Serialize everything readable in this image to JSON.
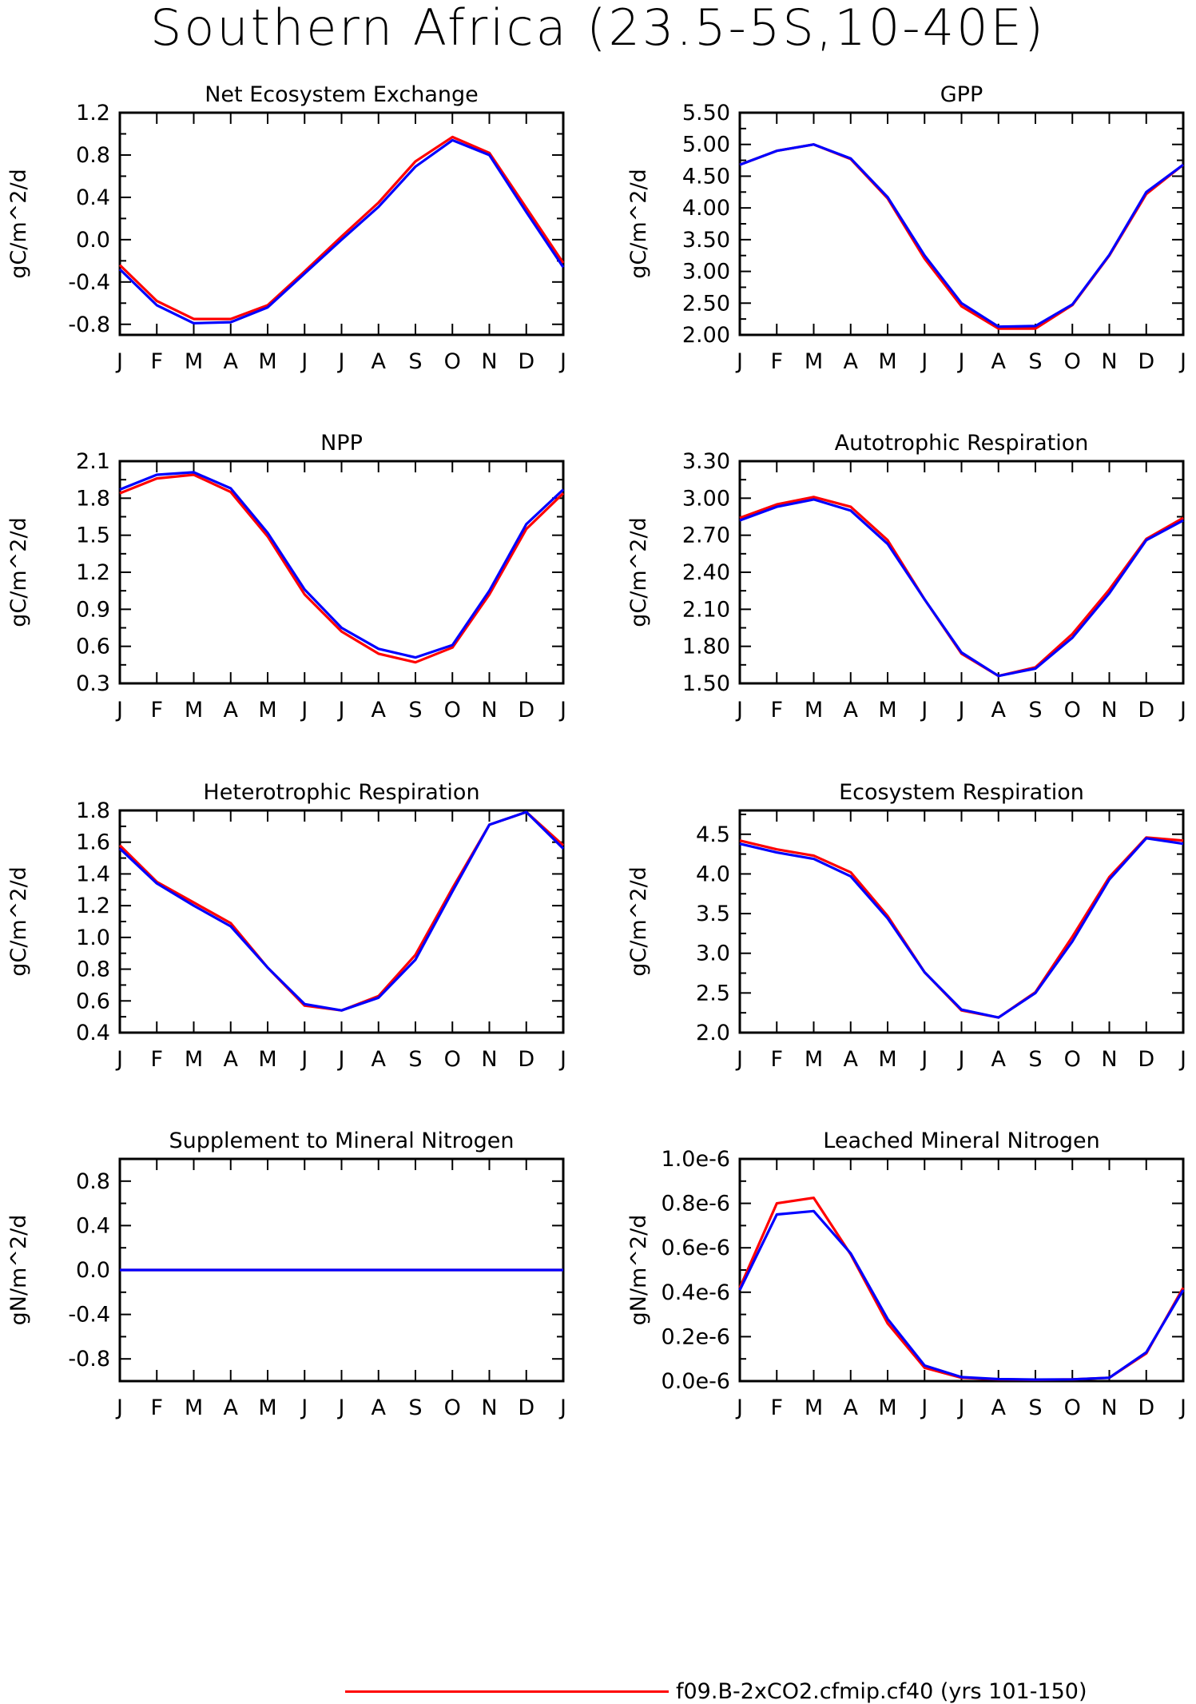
{
  "page": {
    "title": "Southern Africa (23.5-5S,10-40E)",
    "legend": [
      {
        "label": "f09.B-2xCO2.cfmip.cf40 (yrs 101-150)",
        "color": "#ff0000"
      }
    ]
  },
  "chart_data": [
    {
      "type": "line",
      "title": "Net Ecosystem Exchange",
      "ylabel": "gC/m^2/d",
      "ylim": [
        -0.9,
        1.2
      ],
      "yticks": [
        "-0.8",
        "-0.4",
        "0.0",
        "0.4",
        "0.8",
        "1.2"
      ],
      "categories": [
        "J",
        "F",
        "M",
        "A",
        "M",
        "J",
        "J",
        "A",
        "S",
        "O",
        "N",
        "D",
        "J"
      ],
      "grid": false,
      "series": [
        {
          "color": "#ff0000",
          "values": [
            -0.24,
            -0.58,
            -0.75,
            -0.75,
            -0.62,
            -0.3,
            0.03,
            0.35,
            0.74,
            0.97,
            0.82,
            0.3,
            -0.22
          ]
        },
        {
          "color": "#0000ff",
          "values": [
            -0.28,
            -0.62,
            -0.79,
            -0.78,
            -0.64,
            -0.32,
            0.0,
            0.31,
            0.69,
            0.94,
            0.8,
            0.26,
            -0.26
          ]
        }
      ]
    },
    {
      "type": "line",
      "title": "GPP",
      "ylabel": "gC/m^2/d",
      "ylim": [
        2.0,
        5.5
      ],
      "yticks": [
        "2.00",
        "2.50",
        "3.00",
        "3.50",
        "4.00",
        "4.50",
        "5.00",
        "5.50"
      ],
      "categories": [
        "J",
        "F",
        "M",
        "A",
        "M",
        "J",
        "J",
        "A",
        "S",
        "O",
        "N",
        "D",
        "J"
      ],
      "grid": false,
      "series": [
        {
          "color": "#ff0000",
          "values": [
            4.68,
            4.9,
            5.0,
            4.77,
            4.15,
            3.2,
            2.45,
            2.1,
            2.1,
            2.47,
            3.25,
            4.22,
            4.68
          ]
        },
        {
          "color": "#0000ff",
          "values": [
            4.68,
            4.9,
            5.0,
            4.78,
            4.17,
            3.25,
            2.5,
            2.13,
            2.14,
            2.48,
            3.26,
            4.25,
            4.68
          ]
        }
      ]
    },
    {
      "type": "line",
      "title": "NPP",
      "ylabel": "gC/m^2/d",
      "ylim": [
        0.3,
        2.1
      ],
      "yticks": [
        "0.3",
        "0.6",
        "0.9",
        "1.2",
        "1.5",
        "1.8",
        "2.1"
      ],
      "categories": [
        "J",
        "F",
        "M",
        "A",
        "M",
        "J",
        "J",
        "A",
        "S",
        "O",
        "N",
        "D",
        "J"
      ],
      "grid": false,
      "series": [
        {
          "color": "#ff0000",
          "values": [
            1.84,
            1.96,
            1.99,
            1.85,
            1.49,
            1.02,
            0.72,
            0.54,
            0.47,
            0.59,
            1.02,
            1.55,
            1.84
          ]
        },
        {
          "color": "#0000ff",
          "values": [
            1.87,
            1.99,
            2.01,
            1.88,
            1.52,
            1.06,
            0.75,
            0.58,
            0.51,
            0.61,
            1.05,
            1.59,
            1.87
          ]
        }
      ]
    },
    {
      "type": "line",
      "title": "Autotrophic Respiration",
      "ylabel": "gC/m^2/d",
      "ylim": [
        1.5,
        3.3
      ],
      "yticks": [
        "1.50",
        "1.80",
        "2.10",
        "2.40",
        "2.70",
        "3.00",
        "3.30"
      ],
      "categories": [
        "J",
        "F",
        "M",
        "A",
        "M",
        "J",
        "J",
        "A",
        "S",
        "O",
        "N",
        "D",
        "J"
      ],
      "grid": false,
      "series": [
        {
          "color": "#ff0000",
          "values": [
            2.84,
            2.95,
            3.01,
            2.93,
            2.66,
            2.18,
            1.74,
            1.56,
            1.63,
            1.9,
            2.26,
            2.67,
            2.84
          ]
        },
        {
          "color": "#0000ff",
          "values": [
            2.82,
            2.93,
            2.99,
            2.9,
            2.63,
            2.18,
            1.75,
            1.56,
            1.62,
            1.87,
            2.23,
            2.66,
            2.82
          ]
        }
      ]
    },
    {
      "type": "line",
      "title": "Heterotrophic Respiration",
      "ylabel": "gC/m^2/d",
      "ylim": [
        0.4,
        1.8
      ],
      "yticks": [
        "0.4",
        "0.6",
        "0.8",
        "1.0",
        "1.2",
        "1.4",
        "1.6",
        "1.8"
      ],
      "categories": [
        "J",
        "F",
        "M",
        "A",
        "M",
        "J",
        "J",
        "A",
        "S",
        "O",
        "N",
        "D",
        "J"
      ],
      "grid": false,
      "series": [
        {
          "color": "#ff0000",
          "values": [
            1.58,
            1.35,
            1.22,
            1.09,
            0.81,
            0.57,
            0.54,
            0.63,
            0.89,
            1.31,
            1.71,
            1.79,
            1.58
          ]
        },
        {
          "color": "#0000ff",
          "values": [
            1.56,
            1.34,
            1.2,
            1.07,
            0.81,
            0.58,
            0.54,
            0.62,
            0.86,
            1.29,
            1.71,
            1.79,
            1.56
          ]
        }
      ]
    },
    {
      "type": "line",
      "title": "Ecosystem Respiration",
      "ylabel": "gC/m^2/d",
      "ylim": [
        2.0,
        4.8
      ],
      "yticks": [
        "2.0",
        "2.5",
        "3.0",
        "3.5",
        "4.0",
        "4.5"
      ],
      "categories": [
        "J",
        "F",
        "M",
        "A",
        "M",
        "J",
        "J",
        "A",
        "S",
        "O",
        "N",
        "D",
        "J"
      ],
      "grid": false,
      "series": [
        {
          "color": "#ff0000",
          "values": [
            4.42,
            4.31,
            4.23,
            4.02,
            3.47,
            2.76,
            2.28,
            2.19,
            2.51,
            3.21,
            3.96,
            4.46,
            4.42
          ]
        },
        {
          "color": "#0000ff",
          "values": [
            4.38,
            4.27,
            4.19,
            3.97,
            3.44,
            2.76,
            2.29,
            2.19,
            2.5,
            3.15,
            3.93,
            4.45,
            4.38
          ]
        }
      ]
    },
    {
      "type": "line",
      "title": "Supplement to Mineral Nitrogen",
      "ylabel": "gN/m^2/d",
      "ylim": [
        -1.0,
        1.0
      ],
      "yticks": [
        "-0.8",
        "-0.4",
        "0.0",
        "0.4",
        "0.8"
      ],
      "categories": [
        "J",
        "F",
        "M",
        "A",
        "M",
        "J",
        "J",
        "A",
        "S",
        "O",
        "N",
        "D",
        "J"
      ],
      "grid": false,
      "series": [
        {
          "color": "#ff0000",
          "values": [
            0,
            0,
            0,
            0,
            0,
            0,
            0,
            0,
            0,
            0,
            0,
            0,
            0
          ]
        },
        {
          "color": "#0000ff",
          "values": [
            0,
            0,
            0,
            0,
            0,
            0,
            0,
            0,
            0,
            0,
            0,
            0,
            0
          ]
        }
      ]
    },
    {
      "type": "line",
      "title": "Leached Mineral Nitrogen",
      "ylabel": "gN/m^2/d",
      "ylim": [
        0.0,
        1e-06
      ],
      "yticks": [
        "0.0e-6",
        "0.2e-6",
        "0.4e-6",
        "0.6e-6",
        "0.8e-6",
        "1.0e-6"
      ],
      "categories": [
        "J",
        "F",
        "M",
        "A",
        "M",
        "J",
        "J",
        "A",
        "S",
        "O",
        "N",
        "D",
        "J"
      ],
      "grid": false,
      "series": [
        {
          "color": "#ff0000",
          "values": [
            4.2e-07,
            8e-07,
            8.25e-07,
            5.7e-07,
            2.6e-07,
            6e-08,
            1.5e-08,
            8e-09,
            6e-09,
            8e-09,
            1.5e-08,
            1.25e-07,
            4.2e-07
          ]
        },
        {
          "color": "#0000ff",
          "values": [
            4.1e-07,
            7.5e-07,
            7.65e-07,
            5.75e-07,
            2.8e-07,
            7e-08,
            1.8e-08,
            9e-09,
            7e-09,
            8e-09,
            1.5e-08,
            1.3e-07,
            4.1e-07
          ]
        }
      ]
    }
  ]
}
